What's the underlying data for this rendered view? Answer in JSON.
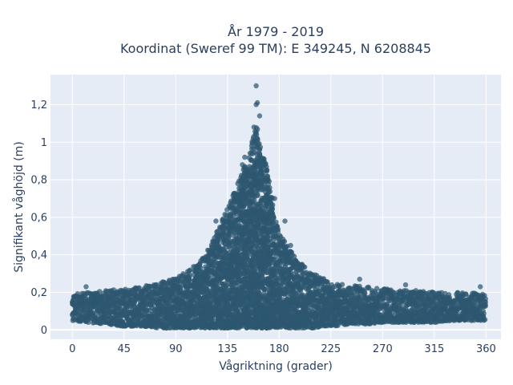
{
  "chart_data": {
    "type": "scatter",
    "title": "År 1979 - 2019",
    "subtitle": "Koordinat (Sweref 99 TM): E 349245, N 6208845",
    "xlabel": "Vågriktning (grader)",
    "ylabel": "Signifikant våghöjd (m)",
    "xlim": [
      -19,
      373
    ],
    "ylim": [
      -0.05,
      1.36
    ],
    "x_ticks": [
      0,
      45,
      90,
      135,
      180,
      225,
      270,
      315,
      360
    ],
    "x_tick_labels": [
      "0",
      "45",
      "90",
      "135",
      "180",
      "225",
      "270",
      "315",
      "360"
    ],
    "y_ticks": [
      0,
      0.2,
      0.4,
      0.6,
      0.8,
      1.0,
      1.2
    ],
    "y_tick_labels": [
      "0",
      "0,2",
      "0,4",
      "0,6",
      "0,8",
      "1",
      "1,2"
    ],
    "grid": true,
    "marker_color": "#2e5770",
    "plot_background": "#e5ecf6",
    "series": [
      {
        "x": [
          0,
          15,
          30,
          45,
          60,
          75,
          90,
          100,
          110,
          120,
          130,
          140,
          145,
          150,
          155,
          158,
          160,
          162,
          165,
          170,
          175,
          180,
          190,
          200,
          210,
          220,
          230,
          240,
          255,
          270,
          285,
          300,
          315,
          330,
          345,
          360
        ],
        "y_min": [
          0.05,
          0.04,
          0.03,
          0.02,
          0.02,
          0.01,
          0.01,
          0.01,
          0.01,
          0.01,
          0.01,
          0.01,
          0.01,
          0.01,
          0.01,
          0.01,
          0.01,
          0.01,
          0.01,
          0.01,
          0.01,
          0.01,
          0.01,
          0.01,
          0.01,
          0.02,
          0.02,
          0.03,
          0.03,
          0.04,
          0.04,
          0.04,
          0.04,
          0.05,
          0.05,
          0.05
        ],
        "y_max": [
          0.19,
          0.2,
          0.21,
          0.22,
          0.23,
          0.25,
          0.28,
          0.31,
          0.36,
          0.45,
          0.58,
          0.72,
          0.8,
          0.88,
          0.95,
          1.05,
          1.13,
          1.0,
          0.95,
          0.85,
          0.65,
          0.52,
          0.42,
          0.35,
          0.3,
          0.27,
          0.25,
          0.24,
          0.23,
          0.22,
          0.21,
          0.21,
          0.2,
          0.2,
          0.2,
          0.19
        ],
        "outliers": [
          [
            160,
            1.3
          ],
          [
            161,
            1.21
          ],
          [
            160,
            1.2
          ],
          [
            163,
            1.14
          ],
          [
            158,
            1.08
          ],
          [
            150,
            0.92
          ],
          [
            148,
            0.88
          ],
          [
            176,
            0.7
          ],
          [
            185,
            0.58
          ],
          [
            190,
            0.45
          ],
          [
            125,
            0.58
          ],
          [
            12,
            0.23
          ],
          [
            290,
            0.24
          ],
          [
            355,
            0.23
          ],
          [
            250,
            0.27
          ]
        ]
      }
    ]
  }
}
